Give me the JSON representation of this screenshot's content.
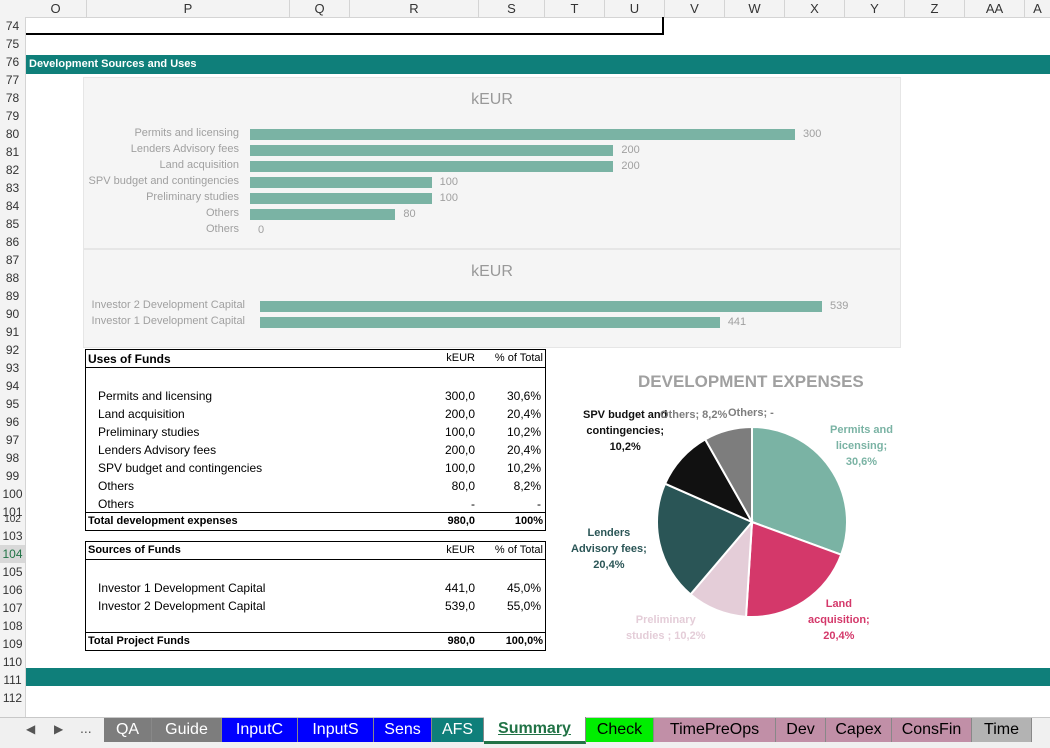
{
  "columns": [
    "O",
    "P",
    "Q",
    "R",
    "S",
    "T",
    "U",
    "V",
    "W",
    "X",
    "Y",
    "Z",
    "AA",
    "A"
  ],
  "rows": [
    "74",
    "75",
    "76",
    "77",
    "78",
    "79",
    "80",
    "81",
    "82",
    "83",
    "84",
    "85",
    "86",
    "87",
    "88",
    "89",
    "90",
    "91",
    "92",
    "93",
    "94",
    "95",
    "96",
    "97",
    "98",
    "99",
    "100",
    "101",
    "102",
    "103",
    "104",
    "105",
    "106",
    "107",
    "108",
    "109",
    "110",
    "111",
    "112"
  ],
  "selected_row": "104",
  "section_title": "Development Sources and Uses",
  "chart1": {
    "title": "kEUR",
    "items": [
      {
        "label": "Permits and licensing",
        "value": "300"
      },
      {
        "label": "Lenders Advisory fees",
        "value": "200"
      },
      {
        "label": "Land acquisition",
        "value": "200"
      },
      {
        "label": "SPV budget and contingencies",
        "value": "100"
      },
      {
        "label": "Preliminary studies",
        "value": "100"
      },
      {
        "label": "Others",
        "value": "80"
      },
      {
        "label": "Others",
        "value": "0"
      }
    ]
  },
  "chart2": {
    "title": "kEUR",
    "items": [
      {
        "label": "Investor 2 Development Capital",
        "value": "539"
      },
      {
        "label": "Investor 1 Development Capital",
        "value": "441"
      }
    ]
  },
  "chart_data": [
    {
      "type": "bar",
      "title": "kEUR",
      "categories": [
        "Permits and licensing",
        "Lenders Advisory fees",
        "Land acquisition",
        "SPV budget and contingencies",
        "Preliminary studies",
        "Others",
        "Others"
      ],
      "values": [
        300,
        200,
        200,
        100,
        100,
        80,
        0
      ]
    },
    {
      "type": "bar",
      "title": "kEUR",
      "categories": [
        "Investor 2 Development Capital",
        "Investor 1 Development Capital"
      ],
      "values": [
        539,
        441
      ]
    },
    {
      "type": "pie",
      "title": "DEVELOPMENT EXPENSES",
      "categories": [
        "Permits and licensing",
        "Land acquisition",
        "Preliminary studies",
        "Lenders Advisory fees",
        "SPV budget and contingencies",
        "Others",
        "Others"
      ],
      "values": [
        30.6,
        20.4,
        10.2,
        20.4,
        10.2,
        8.2,
        0
      ],
      "colors": [
        "#7ab3a4",
        "#d4386a",
        "#e4cdd8",
        "#2a5556",
        "#111111",
        "#7d7d7d",
        "#7d7d7d"
      ]
    }
  ],
  "uses": {
    "header": {
      "label": "Uses of Funds",
      "col1": "kEUR",
      "col2": "% of Total"
    },
    "rows": [
      {
        "label": "Permits and licensing",
        "k": "300,0",
        "p": "30,6%"
      },
      {
        "label": "Land acquisition",
        "k": "200,0",
        "p": "20,4%"
      },
      {
        "label": "Preliminary studies",
        "k": "100,0",
        "p": "10,2%"
      },
      {
        "label": "Lenders Advisory fees",
        "k": "200,0",
        "p": "20,4%"
      },
      {
        "label": "SPV budget and contingencies",
        "k": "100,0",
        "p": "10,2%"
      },
      {
        "label": "Others",
        "k": "80,0",
        "p": "8,2%"
      },
      {
        "label": "Others",
        "k": "-",
        "p": "-"
      }
    ],
    "total": {
      "label": "Total development expenses",
      "k": "980,0",
      "p": "100%"
    }
  },
  "sources": {
    "header": {
      "label": "Sources of Funds",
      "col1": "kEUR",
      "col2": "% of Total"
    },
    "rows": [
      {
        "label": "Investor 1 Development Capital",
        "k": "441,0",
        "p": "45,0%"
      },
      {
        "label": "Investor 2 Development Capital",
        "k": "539,0",
        "p": "55,0%"
      }
    ],
    "total": {
      "label": "Total Project Funds",
      "k": "980,0",
      "p": "100,0%"
    }
  },
  "pie": {
    "title": "DEVELOPMENT EXPENSES",
    "labels": {
      "permits": [
        "Permits and",
        "licensing;",
        "30,6%"
      ],
      "land": [
        "Land",
        "acquisition;",
        "20,4%"
      ],
      "prelim": [
        "Preliminary",
        "studies ; 10,2%"
      ],
      "lenders": [
        "Lenders",
        "Advisory fees;",
        "20,4%"
      ],
      "spv": [
        "SPV budget and",
        "contingencies;",
        "10,2%"
      ],
      "others1": "Others; 8,2%",
      "others2": "Others; -"
    }
  },
  "tabs": [
    {
      "label": "QA",
      "bg": "#7d7d7d",
      "fg": "#ffffff"
    },
    {
      "label": "Guide",
      "bg": "#7d7d7d",
      "fg": "#ffffff"
    },
    {
      "label": "InputC",
      "bg": "#0000ff",
      "fg": "#ffffff"
    },
    {
      "label": "InputS",
      "bg": "#0000ff",
      "fg": "#ffffff"
    },
    {
      "label": "Sens",
      "bg": "#0000ff",
      "fg": "#ffffff"
    },
    {
      "label": "AFS",
      "bg": "#0f7f7a",
      "fg": "#ffffff"
    },
    {
      "label": "Summary",
      "bg": "#ffffff",
      "fg": "#217346"
    },
    {
      "label": "Check",
      "bg": "#00ee00",
      "fg": "#000000"
    },
    {
      "label": "TimePreOps",
      "bg": "#c18fa7",
      "fg": "#000000"
    },
    {
      "label": "Dev",
      "bg": "#c18fa7",
      "fg": "#000000"
    },
    {
      "label": "Capex",
      "bg": "#c18fa7",
      "fg": "#000000"
    },
    {
      "label": "ConsFin",
      "bg": "#c18fa7",
      "fg": "#000000"
    },
    {
      "label": "Time",
      "bg": "#b3b3b3",
      "fg": "#000000"
    }
  ],
  "nav": {
    "prev": "◀",
    "next": "▶",
    "more": "..."
  }
}
